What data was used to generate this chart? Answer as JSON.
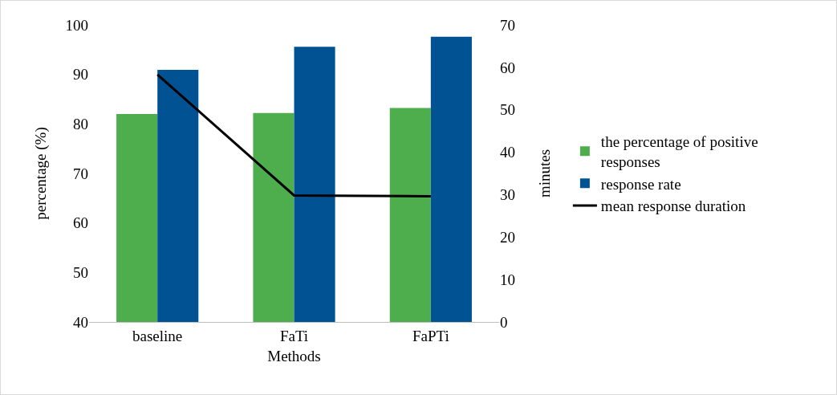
{
  "chart_data": {
    "type": "bar",
    "xlabel": "Methods",
    "ylabel": "percentage (%)",
    "y2label": "minutes",
    "categories": [
      "baseline",
      "FaTi",
      "FaPTi"
    ],
    "series": [
      {
        "name": "the percentage of positive responses",
        "color": "#4eae4e",
        "values": [
          82,
          82.2,
          83.2
        ]
      },
      {
        "name": "response rate",
        "color": "#005293",
        "values": [
          90.9,
          95.6,
          97.6
        ]
      },
      {
        "name": "mean response duration",
        "type": "line",
        "axis": "y2",
        "color": "#000000",
        "values": [
          58.3,
          29.8,
          29.6
        ]
      }
    ],
    "ylim": [
      40,
      100
    ],
    "yticks": [
      40,
      50,
      60,
      70,
      80,
      90,
      100
    ],
    "y2lim": [
      0,
      70
    ],
    "y2ticks": [
      0,
      10,
      20,
      30,
      40,
      50,
      60,
      70
    ],
    "grid": false,
    "legend": "right",
    "marker": "none",
    "line_style": "solid"
  }
}
